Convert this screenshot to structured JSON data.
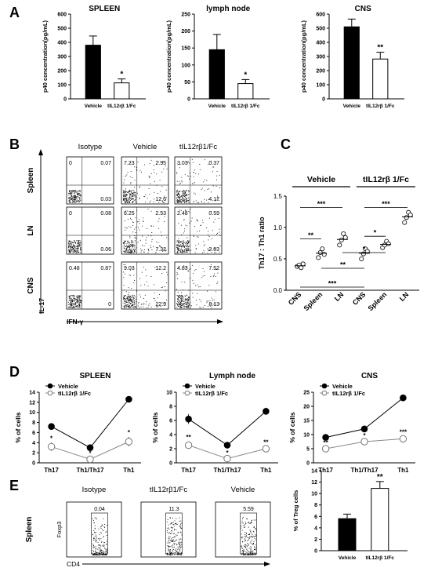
{
  "panels": {
    "A": "A",
    "B": "B",
    "C": "C",
    "D": "D",
    "E": "E"
  },
  "chart_data": [
    {
      "id": "A1",
      "type": "bar",
      "title": "SPLEEN",
      "ylabel": "p40 concentration(pg/mL)",
      "ylim": [
        0,
        600
      ],
      "ticks": [
        0,
        100,
        200,
        300,
        400,
        500,
        600
      ],
      "categories": [
        "Vehicle",
        "tIL12rβ 1/Fc"
      ],
      "values": [
        380,
        113
      ],
      "errors": [
        65,
        28
      ],
      "sig": [
        "",
        "*"
      ]
    },
    {
      "id": "A2",
      "type": "bar",
      "title": "lymph node",
      "ylabel": "p40 concentration(pg/mL)",
      "ylim": [
        0,
        250
      ],
      "ticks": [
        0,
        50,
        100,
        150,
        200,
        250
      ],
      "categories": [
        "Vehicle",
        "tIL12rβ 1/Fc"
      ],
      "values": [
        145,
        45
      ],
      "errors": [
        45,
        12
      ],
      "sig": [
        "",
        "*"
      ]
    },
    {
      "id": "A3",
      "type": "bar",
      "title": "CNS",
      "ylabel": "p40 concentration(pg/mL)",
      "ylim": [
        0,
        600
      ],
      "ticks": [
        0,
        100,
        200,
        300,
        400,
        500,
        600
      ],
      "categories": [
        "Vehicle",
        "tIL12rβ 1/Fc"
      ],
      "values": [
        510,
        282
      ],
      "errors": [
        55,
        48
      ],
      "sig": [
        "",
        "**"
      ]
    },
    {
      "id": "C",
      "type": "scatter",
      "ylabel": "Th17 : Th1 ratio",
      "ylim": [
        0,
        1.5
      ],
      "ticks": [
        0.0,
        0.5,
        1.0,
        1.5
      ],
      "categories": [
        "CNS",
        "Spleen",
        "LN",
        "CNS",
        "Spleen",
        "LN"
      ],
      "groups": [
        "Vehicle",
        "tIL12rβ 1/Fc"
      ],
      "points": [
        [
          0.38,
          0.4,
          0.36,
          0.42
        ],
        [
          0.52,
          0.6,
          0.66,
          0.57
        ],
        [
          0.72,
          0.8,
          0.9,
          0.84
        ],
        [
          0.5,
          0.58,
          0.66,
          0.62
        ],
        [
          0.68,
          0.72,
          0.78,
          0.74
        ],
        [
          1.08,
          1.16,
          1.24,
          1.2
        ]
      ],
      "means": [
        0.39,
        0.59,
        0.81,
        0.59,
        0.73,
        1.17
      ],
      "sig_labels": [
        "***",
        "**",
        "***",
        "*",
        "***",
        "*",
        "**"
      ]
    },
    {
      "id": "D1",
      "type": "line",
      "title": "SPLEEN",
      "ylabel": "% of cells",
      "ylim": [
        0,
        14
      ],
      "ticks": [
        0,
        2,
        4,
        6,
        8,
        10,
        12,
        14
      ],
      "categories": [
        "Th17",
        "Th1/Th17",
        "Th1"
      ],
      "series": [
        {
          "name": "Vehicle",
          "values": [
            7.2,
            3.0,
            12.6
          ],
          "errors": [
            0.6,
            0.2,
            0.5
          ]
        },
        {
          "name": "tIL12rβ 1/Fc",
          "values": [
            3.2,
            0.7,
            4.2
          ],
          "errors": [
            0.8,
            0.3,
            0.9
          ]
        }
      ],
      "sig": [
        "*",
        "*",
        "*"
      ]
    },
    {
      "id": "D2",
      "type": "line",
      "title": "Lymph node",
      "ylabel": "% of cells",
      "ylim": [
        0,
        10
      ],
      "ticks": [
        0,
        2,
        4,
        6,
        8,
        10
      ],
      "categories": [
        "Th17",
        "Th1/Th17",
        "Th1"
      ],
      "series": [
        {
          "name": "Vehicle",
          "values": [
            6.2,
            2.5,
            7.3
          ],
          "errors": [
            0.7,
            0.3,
            0.5
          ]
        },
        {
          "name": "tIL12rβ 1/Fc",
          "values": [
            2.5,
            0.6,
            2.0
          ],
          "errors": [
            0.5,
            0.2,
            0.3
          ]
        }
      ],
      "sig": [
        "**",
        "*",
        "**"
      ]
    },
    {
      "id": "D3",
      "type": "line",
      "title": "CNS",
      "ylabel": "% of cells",
      "ylim": [
        0,
        25
      ],
      "ticks": [
        0,
        5,
        10,
        15,
        20,
        25
      ],
      "categories": [
        "Th17",
        "Th1/Th17",
        "Th1"
      ],
      "series": [
        {
          "name": "Vehicle",
          "values": [
            9.0,
            12.0,
            23.0
          ],
          "errors": [
            0.5,
            0.5,
            0.8
          ]
        },
        {
          "name": "tIL12rβ 1/Fc",
          "values": [
            5.0,
            7.5,
            8.5
          ],
          "errors": [
            0.6,
            0.5,
            0.8
          ]
        }
      ],
      "sig": [
        "**",
        "*",
        "***"
      ]
    },
    {
      "id": "E_bar",
      "type": "bar",
      "ylabel": "% of Treg cells",
      "ylim": [
        0,
        14
      ],
      "ticks": [
        0,
        2,
        4,
        6,
        8,
        10,
        12,
        14
      ],
      "categories": [
        "Vehicle",
        "tIL12rβ 1/Fc"
      ],
      "values": [
        5.6,
        10.9
      ],
      "errors": [
        0.8,
        1.2
      ],
      "sig": [
        "",
        "**"
      ]
    }
  ],
  "flow_B": {
    "cols": [
      "Isotype",
      "Vehicle",
      "tIL12rβ1/Fc"
    ],
    "rows": [
      "Spleen",
      "LN",
      "CNS"
    ],
    "yaxis": "IL-17",
    "xaxis": "IFN-γ",
    "quadrants": [
      [
        [
          "0",
          "0.07",
          "0.03"
        ],
        [
          "7.23",
          "2.95",
          "12.6"
        ],
        [
          "3.03",
          "0.37",
          "4.17"
        ]
      ],
      [
        [
          "0",
          "0.08",
          "0.06"
        ],
        [
          "6.25",
          "2.53",
          "7.32"
        ],
        [
          "2.48",
          "0.59",
          "2.03"
        ]
      ],
      [
        [
          "0.48",
          "0.87",
          "0"
        ],
        [
          "9.03",
          "12.2",
          "22.9"
        ],
        [
          "4.83",
          "7.52",
          "8.13"
        ]
      ]
    ]
  },
  "flow_E": {
    "row": "Spleen",
    "yaxis": "Foxp3",
    "xaxis": "CD4",
    "cols": [
      "Isotype",
      "tIL12rβ1/Fc",
      "Vehicle"
    ],
    "gates": [
      "0.04",
      "11.3",
      "5.59"
    ]
  }
}
